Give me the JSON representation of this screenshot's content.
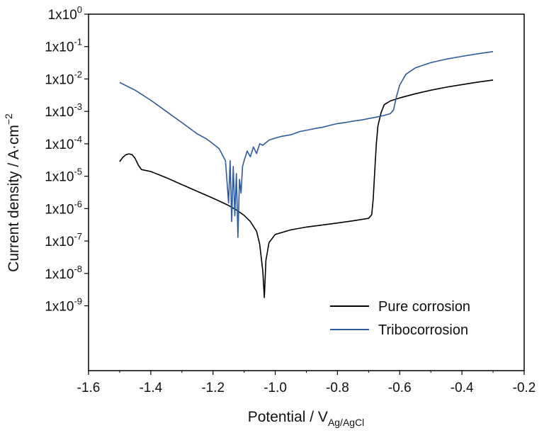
{
  "chart_data": {
    "type": "line",
    "xlabel": "Potential / V",
    "xlabel_sub": "Ag/AgCl",
    "ylabel": "Current density / A·cm",
    "ylabel_sup": "−2",
    "xlim": [
      -1.6,
      -0.2
    ],
    "ylim": [
      1e-11,
      1
    ],
    "yscale": "log",
    "grid": false,
    "legend_position": "bottom-right",
    "x_ticks": [
      -1.6,
      -1.4,
      -1.2,
      -1.0,
      -0.8,
      -0.6,
      -0.4,
      -0.2
    ],
    "x_tick_labels": [
      "-1.6",
      "-1.4",
      "-1.2",
      "-1.0",
      "-0.8",
      "-0.6",
      "-0.4",
      "-0.2"
    ],
    "y_ticks": [
      {
        "value": 1,
        "base": "1x10",
        "exp": "0"
      },
      {
        "value": 0.1,
        "base": "1x10",
        "exp": "-1"
      },
      {
        "value": 0.01,
        "base": "1x10",
        "exp": "-2"
      },
      {
        "value": 0.001,
        "base": "1x10",
        "exp": "-3"
      },
      {
        "value": 0.0001,
        "base": "1x10",
        "exp": "-4"
      },
      {
        "value": 1e-05,
        "base": "1x10",
        "exp": "-5"
      },
      {
        "value": 1e-06,
        "base": "1x10",
        "exp": "-6"
      },
      {
        "value": 1e-07,
        "base": "1x10",
        "exp": "-7"
      },
      {
        "value": 1e-08,
        "base": "1x10",
        "exp": "-8"
      },
      {
        "value": 1e-09,
        "base": "1x10",
        "exp": "-9"
      }
    ],
    "series": [
      {
        "name": "Pure corrosion",
        "color": "#000000",
        "points": [
          [
            -1.5,
            2.8e-05
          ],
          [
            -1.49,
            3.8e-05
          ],
          [
            -1.48,
            4.6e-05
          ],
          [
            -1.47,
            4.9e-05
          ],
          [
            -1.46,
            4.6e-05
          ],
          [
            -1.45,
            3.5e-05
          ],
          [
            -1.44,
            2.2e-05
          ],
          [
            -1.43,
            1.6e-05
          ],
          [
            -1.4,
            1.4e-05
          ],
          [
            -1.35,
            9e-06
          ],
          [
            -1.3,
            5.5e-06
          ],
          [
            -1.25,
            3.4e-06
          ],
          [
            -1.2,
            2.1e-06
          ],
          [
            -1.15,
            1.25e-06
          ],
          [
            -1.12,
            8.5e-07
          ],
          [
            -1.1,
            6.2e-07
          ],
          [
            -1.08,
            4e-07
          ],
          [
            -1.06,
            2e-07
          ],
          [
            -1.05,
            8e-08
          ],
          [
            -1.04,
            1.2e-08
          ],
          [
            -1.035,
            1.8e-09
          ],
          [
            -1.03,
            2.5e-08
          ],
          [
            -1.02,
            9e-08
          ],
          [
            -1.0,
            1.6e-07
          ],
          [
            -0.95,
            2.2e-07
          ],
          [
            -0.9,
            2.7e-07
          ],
          [
            -0.85,
            3.1e-07
          ],
          [
            -0.8,
            3.6e-07
          ],
          [
            -0.75,
            4.2e-07
          ],
          [
            -0.7,
            5e-07
          ],
          [
            -0.69,
            6.5e-07
          ],
          [
            -0.685,
            2e-06
          ],
          [
            -0.68,
            1.5e-05
          ],
          [
            -0.675,
            0.0001
          ],
          [
            -0.67,
            0.00035
          ],
          [
            -0.66,
            0.0009
          ],
          [
            -0.65,
            0.0016
          ],
          [
            -0.63,
            0.0021
          ],
          [
            -0.6,
            0.0026
          ],
          [
            -0.55,
            0.0035
          ],
          [
            -0.5,
            0.0045
          ],
          [
            -0.45,
            0.0056
          ],
          [
            -0.4,
            0.0067
          ],
          [
            -0.35,
            0.008
          ],
          [
            -0.3,
            0.0093
          ]
        ]
      },
      {
        "name": "Tribocorrosion",
        "color": "#2c5aa0",
        "points": [
          [
            -1.5,
            0.0078
          ],
          [
            -1.45,
            0.0045
          ],
          [
            -1.4,
            0.0022
          ],
          [
            -1.35,
            0.001
          ],
          [
            -1.3,
            0.00045
          ],
          [
            -1.25,
            0.0002
          ],
          [
            -1.22,
            0.00014
          ],
          [
            -1.2,
            0.0001
          ],
          [
            -1.18,
            7e-05
          ],
          [
            -1.16,
            3e-05
          ],
          [
            -1.15,
            1.5e-06
          ],
          [
            -1.145,
            3e-05
          ],
          [
            -1.14,
            4e-07
          ],
          [
            -1.135,
            2e-05
          ],
          [
            -1.13,
            6e-07
          ],
          [
            -1.125,
            1.2e-05
          ],
          [
            -1.12,
            1.3e-07
          ],
          [
            -1.115,
            8e-06
          ],
          [
            -1.11,
            3e-06
          ],
          [
            -1.105,
            2e-05
          ],
          [
            -1.1,
            3e-05
          ],
          [
            -1.09,
            6e-05
          ],
          [
            -1.08,
            4e-05
          ],
          [
            -1.07,
            8e-05
          ],
          [
            -1.06,
            5e-05
          ],
          [
            -1.05,
            0.0001
          ],
          [
            -1.04,
            9e-05
          ],
          [
            -1.02,
            0.00013
          ],
          [
            -1.0,
            0.00015
          ],
          [
            -0.98,
            0.00017
          ],
          [
            -0.95,
            0.00019
          ],
          [
            -0.92,
            0.00024
          ],
          [
            -0.9,
            0.00026
          ],
          [
            -0.87,
            0.0003
          ],
          [
            -0.85,
            0.00032
          ],
          [
            -0.82,
            0.00038
          ],
          [
            -0.8,
            0.00042
          ],
          [
            -0.77,
            0.00046
          ],
          [
            -0.75,
            0.0005
          ],
          [
            -0.72,
            0.00055
          ],
          [
            -0.7,
            0.0006
          ],
          [
            -0.67,
            0.00068
          ],
          [
            -0.65,
            0.00075
          ],
          [
            -0.63,
            0.00085
          ],
          [
            -0.62,
            0.0011
          ],
          [
            -0.61,
            0.003
          ],
          [
            -0.6,
            0.0065
          ],
          [
            -0.58,
            0.014
          ],
          [
            -0.55,
            0.022
          ],
          [
            -0.5,
            0.032
          ],
          [
            -0.45,
            0.041
          ],
          [
            -0.4,
            0.05
          ],
          [
            -0.35,
            0.06
          ],
          [
            -0.3,
            0.07
          ]
        ]
      }
    ]
  }
}
